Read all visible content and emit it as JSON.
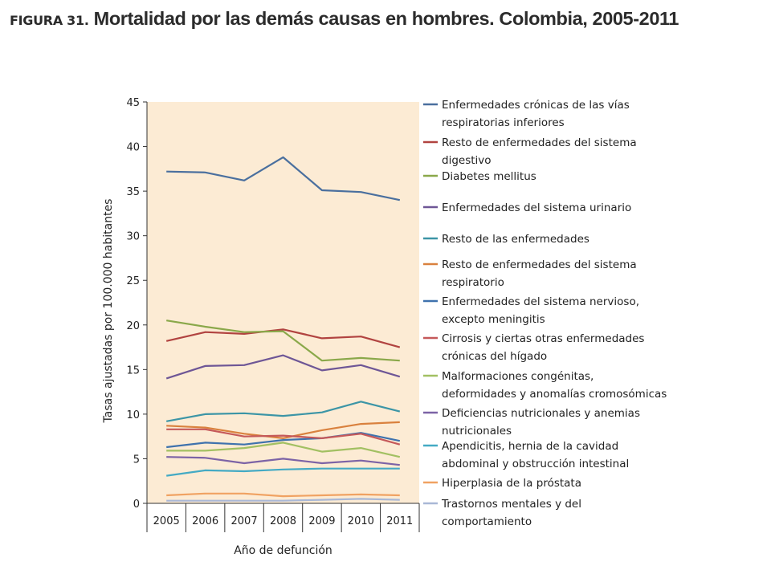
{
  "figure": {
    "prefix": "FIGURA 31.",
    "title": "Mortalidad por las demás causas en hombres. Colombia, 2005-2011"
  },
  "colors": {
    "plot_background": "#fcebd4",
    "axis": "#333333"
  },
  "chart_data": {
    "type": "line",
    "title": "Mortalidad por las demás causas en hombres. Colombia, 2005-2011",
    "xlabel": "Año de defunción",
    "ylabel": "Tasas ajustadas por 100.000 habitantes",
    "categories": [
      "2005",
      "2006",
      "2007",
      "2008",
      "2009",
      "2010",
      "2011"
    ],
    "ylim": [
      0,
      45
    ],
    "yticks": [
      0,
      5,
      10,
      15,
      20,
      25,
      30,
      35,
      40,
      45
    ],
    "grid": false,
    "legend_position": "right",
    "series": [
      {
        "name": "Enfermedades crónicas de las vías respiratorias inferiores",
        "legend_lines": [
          "Enfermedades crónicas de las vías",
          "respiratorias inferiores"
        ],
        "color": "#4a6f9e",
        "values": [
          37.2,
          37.1,
          36.2,
          38.8,
          35.1,
          34.9,
          34.0
        ]
      },
      {
        "name": "Resto de enfermedades del sistema digestivo",
        "legend_lines": [
          "Resto de enfermedades del sistema",
          "digestivo"
        ],
        "color": "#b14340",
        "values": [
          18.2,
          19.2,
          19.0,
          19.5,
          18.5,
          18.7,
          17.5
        ]
      },
      {
        "name": "Diabetes mellitus",
        "legend_lines": [
          "Diabetes mellitus"
        ],
        "color": "#8aa84a",
        "values": [
          20.5,
          19.8,
          19.2,
          19.3,
          16.0,
          16.3,
          16.0
        ]
      },
      {
        "name": "Enfermedades del sistema urinario",
        "legend_lines": [
          "Enfermedades del sistema urinario"
        ],
        "color": "#6e5696",
        "values": [
          14.0,
          15.4,
          15.5,
          16.6,
          14.9,
          15.5,
          14.2
        ]
      },
      {
        "name": "Resto de las enfermedades",
        "legend_lines": [
          "Resto de las enfermedades"
        ],
        "color": "#3c95a6",
        "values": [
          9.2,
          10.0,
          10.1,
          9.8,
          10.2,
          11.4,
          10.3
        ]
      },
      {
        "name": "Resto de enfermedades del sistema respiratorio",
        "legend_lines": [
          "Resto de enfermedades del sistema",
          "respiratorio"
        ],
        "color": "#d9813e",
        "values": [
          8.7,
          8.5,
          7.8,
          7.3,
          8.2,
          8.9,
          9.1
        ]
      },
      {
        "name": "Enfermedades del sistema nervioso, excepto meningitis",
        "legend_lines": [
          "Enfermedades del sistema nervioso,",
          "excepto meningitis"
        ],
        "color": "#3f72ad",
        "values": [
          6.3,
          6.8,
          6.6,
          7.1,
          7.3,
          7.9,
          7.0
        ]
      },
      {
        "name": "Cirrosis y ciertas otras enfermedades crónicas del hígado",
        "legend_lines": [
          "Cirrosis y ciertas otras enfermedades",
          "crónicas del hígado"
        ],
        "color": "#c5595a",
        "values": [
          8.3,
          8.3,
          7.5,
          7.6,
          7.3,
          7.8,
          6.6
        ]
      },
      {
        "name": "Malformaciones congénitas, deformidades y anomalías cromosómicas",
        "legend_lines": [
          "Malformaciones congénitas,",
          "deformidades y anomalías cromosómicas"
        ],
        "color": "#a2c062",
        "values": [
          5.9,
          5.9,
          6.2,
          6.8,
          5.8,
          6.2,
          5.2
        ]
      },
      {
        "name": "Deficiencias nutricionales y anemias nutricionales",
        "legend_lines": [
          "Deficiencias nutricionales y anemias",
          "nutricionales"
        ],
        "color": "#7c63a6",
        "values": [
          5.2,
          5.1,
          4.5,
          5.0,
          4.5,
          4.8,
          4.3
        ]
      },
      {
        "name": "Apendicitis, hernia de la cavidad abdominal y obstrucción intestinal",
        "legend_lines": [
          "Apendicitis, hernia de la cavidad",
          "abdominal y obstrucción intestinal"
        ],
        "color": "#44aac4",
        "values": [
          3.1,
          3.7,
          3.6,
          3.8,
          3.9,
          3.9,
          3.9
        ]
      },
      {
        "name": "Hiperplasia de la próstata",
        "legend_lines": [
          "Hiperplasia de la próstata"
        ],
        "color": "#f0a262",
        "values": [
          0.9,
          1.1,
          1.1,
          0.8,
          0.9,
          1.0,
          0.9
        ]
      },
      {
        "name": "Trastornos mentales y del comportamiento",
        "legend_lines": [
          "Trastornos mentales y del",
          "comportamiento"
        ],
        "color": "#a9b8d6",
        "values": [
          0.3,
          0.3,
          0.3,
          0.3,
          0.4,
          0.5,
          0.4
        ]
      }
    ]
  }
}
